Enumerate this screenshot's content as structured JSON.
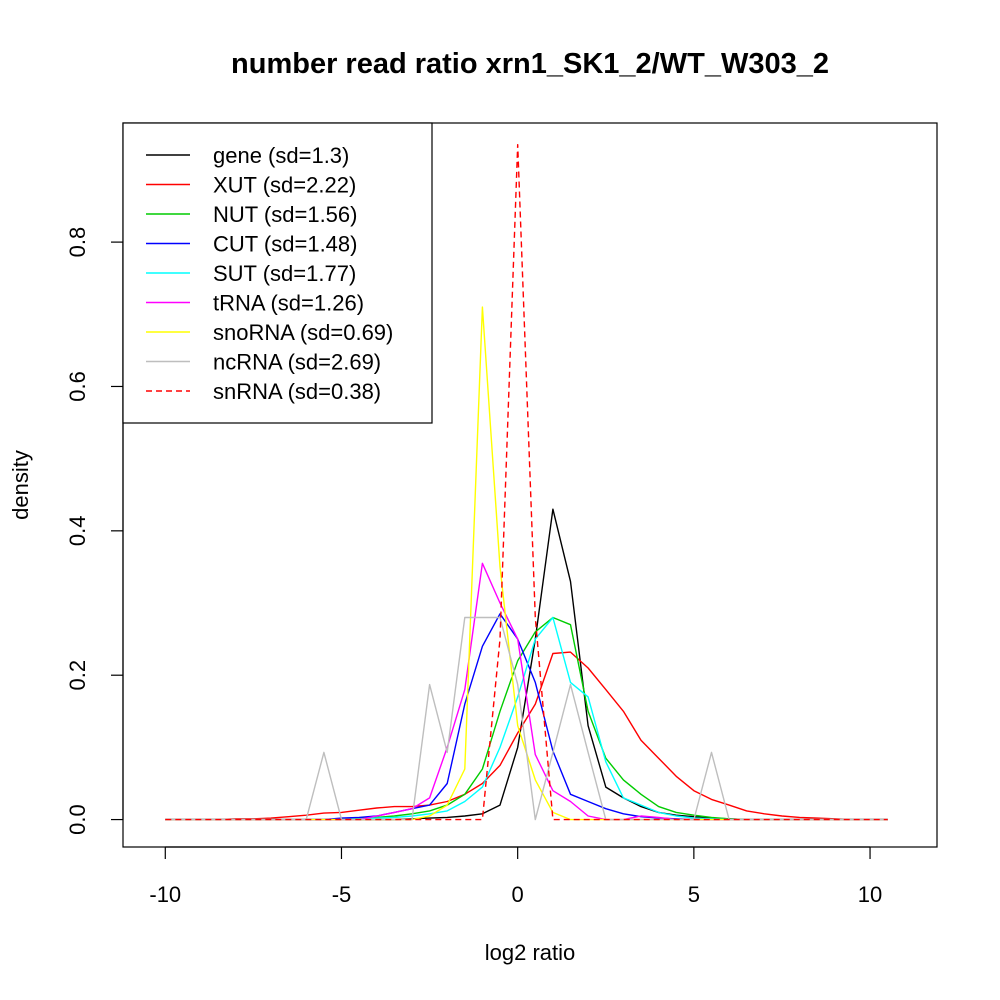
{
  "chart_data": {
    "type": "line",
    "title": "number read ratio xrn1_SK1_2/WT_W303_2",
    "xlabel": "log2 ratio",
    "ylabel": "density",
    "xlim": [
      -11.2,
      11.9
    ],
    "ylim": [
      -0.038,
      0.965
    ],
    "xticks": [
      -10,
      -5,
      0,
      5,
      10
    ],
    "xtick_labels": [
      "-10",
      "-5",
      "0",
      "5",
      "10"
    ],
    "yticks": [
      0.0,
      0.2,
      0.4,
      0.6,
      0.8
    ],
    "ytick_labels": [
      "0.0",
      "0.2",
      "0.4",
      "0.6",
      "0.8"
    ],
    "grid": false,
    "legend_position": "top-left",
    "x": [
      -10,
      -9.5,
      -9,
      -8.5,
      -8,
      -7.5,
      -7,
      -6.5,
      -6,
      -5.5,
      -5,
      -4.5,
      -4,
      -3.5,
      -3,
      -2.5,
      -2,
      -1.5,
      -1,
      -0.5,
      0,
      0.5,
      1,
      1.5,
      2,
      2.5,
      3,
      3.5,
      4,
      4.5,
      5,
      5.5,
      6,
      6.5,
      7,
      7.5,
      8,
      8.5,
      9,
      9.5,
      10,
      10.5
    ],
    "series": [
      {
        "name": "gene (sd=1.3)",
        "color": "#000000",
        "dash": false,
        "values": [
          0,
          0,
          0,
          0,
          0,
          0,
          0,
          0,
          0,
          0,
          0,
          0,
          0,
          0,
          0.001,
          0.002,
          0.003,
          0.005,
          0.008,
          0.02,
          0.1,
          0.25,
          0.43,
          0.33,
          0.13,
          0.045,
          0.03,
          0.018,
          0.01,
          0.006,
          0.004,
          0.002,
          0.001,
          0,
          0,
          0,
          0,
          0,
          0,
          0,
          0,
          0
        ]
      },
      {
        "name": "XUT (sd=2.22)",
        "color": "#ff0000",
        "dash": false,
        "values": [
          0,
          0,
          0,
          0,
          0.001,
          0.001,
          0.002,
          0.004,
          0.006,
          0.009,
          0.01,
          0.013,
          0.016,
          0.018,
          0.018,
          0.02,
          0.025,
          0.035,
          0.05,
          0.075,
          0.12,
          0.16,
          0.23,
          0.232,
          0.21,
          0.18,
          0.15,
          0.11,
          0.085,
          0.06,
          0.04,
          0.028,
          0.02,
          0.012,
          0.008,
          0.005,
          0.003,
          0.002,
          0.001,
          0,
          0,
          0
        ]
      },
      {
        "name": "NUT (sd=1.56)",
        "color": "#00cc00",
        "dash": false,
        "values": [
          0,
          0,
          0,
          0,
          0,
          0,
          0,
          0,
          0,
          0,
          0.001,
          0.002,
          0.003,
          0.005,
          0.008,
          0.012,
          0.02,
          0.035,
          0.07,
          0.15,
          0.22,
          0.26,
          0.28,
          0.27,
          0.15,
          0.085,
          0.055,
          0.035,
          0.018,
          0.01,
          0.006,
          0.003,
          0.001,
          0,
          0,
          0,
          0,
          0,
          0,
          0,
          0,
          0
        ]
      },
      {
        "name": "CUT (sd=1.48)",
        "color": "#0000ff",
        "dash": false,
        "values": [
          0,
          0,
          0,
          0,
          0,
          0,
          0,
          0,
          0,
          0,
          0.002,
          0.003,
          0.005,
          0.01,
          0.015,
          0.02,
          0.05,
          0.16,
          0.24,
          0.285,
          0.25,
          0.19,
          0.095,
          0.035,
          0.025,
          0.015,
          0.008,
          0.004,
          0.002,
          0.001,
          0,
          0,
          0,
          0,
          0,
          0,
          0,
          0,
          0,
          0,
          0,
          0
        ]
      },
      {
        "name": "SUT (sd=1.77)",
        "color": "#00ffff",
        "dash": false,
        "values": [
          0,
          0,
          0,
          0,
          0,
          0,
          0,
          0,
          0,
          0,
          0,
          0.001,
          0.002,
          0.003,
          0.005,
          0.008,
          0.012,
          0.025,
          0.045,
          0.1,
          0.17,
          0.25,
          0.28,
          0.19,
          0.17,
          0.08,
          0.03,
          0.02,
          0.01,
          0.005,
          0.002,
          0.001,
          0,
          0,
          0,
          0,
          0,
          0,
          0,
          0,
          0,
          0
        ]
      },
      {
        "name": "tRNA (sd=1.26)",
        "color": "#ff00ff",
        "dash": false,
        "values": [
          0,
          0,
          0,
          0,
          0,
          0,
          0,
          0,
          0,
          0,
          0,
          0,
          0.005,
          0.01,
          0.015,
          0.03,
          0.1,
          0.18,
          0.355,
          0.3,
          0.25,
          0.09,
          0.04,
          0.025,
          0.005,
          0,
          0,
          0.005,
          0.003,
          0,
          0,
          0,
          0,
          0,
          0,
          0,
          0,
          0,
          0,
          0,
          0,
          0
        ]
      },
      {
        "name": "snoRNA (sd=0.69)",
        "color": "#ffff00",
        "dash": false,
        "values": [
          0,
          0,
          0,
          0,
          0,
          0,
          0,
          0,
          0,
          0,
          0,
          0,
          0,
          0,
          0,
          0.005,
          0.02,
          0.07,
          0.71,
          0.35,
          0.13,
          0.055,
          0.01,
          0,
          0,
          0,
          0,
          0,
          0,
          0,
          0,
          0,
          0,
          0,
          0,
          0,
          0,
          0,
          0,
          0,
          0,
          0
        ]
      },
      {
        "name": "ncRNA (sd=2.69)",
        "color": "#bebebe",
        "dash": false,
        "values": [
          0,
          0,
          0,
          0,
          0,
          0,
          0,
          0,
          0,
          0.093,
          0,
          0,
          0,
          0,
          0,
          0.187,
          0.093,
          0.28,
          0.28,
          0.28,
          0.187,
          0,
          0.093,
          0.187,
          0.093,
          0,
          0,
          0,
          0,
          0,
          0,
          0.093,
          0,
          0,
          0,
          0,
          0,
          0,
          0,
          0,
          0,
          0
        ]
      },
      {
        "name": "snRNA (sd=0.38)",
        "color": "#ff0000",
        "dash": true,
        "values": [
          0,
          0,
          0,
          0,
          0,
          0,
          0,
          0,
          0,
          0,
          0,
          0,
          0,
          0,
          0,
          0,
          0,
          0,
          0,
          0.25,
          0.935,
          0.28,
          0,
          0,
          0,
          0,
          0,
          0,
          0,
          0,
          0,
          0,
          0,
          0,
          0,
          0,
          0,
          0,
          0,
          0,
          0,
          0
        ]
      }
    ]
  }
}
